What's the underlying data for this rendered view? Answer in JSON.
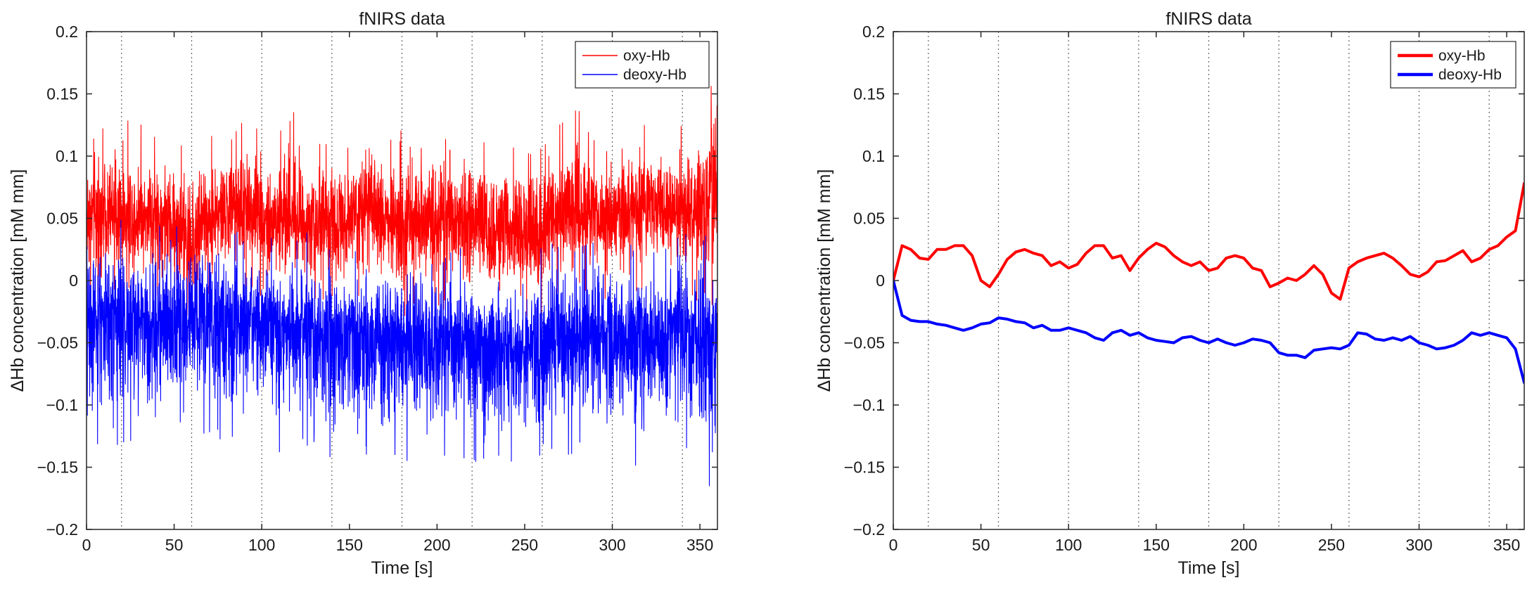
{
  "colors": {
    "oxy": "#ff0000",
    "deoxy": "#0000ff",
    "grid": "#666666",
    "axis": "#262626"
  },
  "chart_data": [
    {
      "type": "line",
      "title": "fNIRS data",
      "xlabel": "Time [s]",
      "ylabel": "ΔHb concentration [mM mm]",
      "xlim": [
        0,
        360
      ],
      "ylim": [
        -0.2,
        0.2
      ],
      "xticks": [
        "0",
        "50",
        "100",
        "150",
        "200",
        "250",
        "300",
        "350"
      ],
      "yticks": [
        "-0.2",
        "-0.15",
        "-0.1",
        "-0.05",
        "0",
        "0.05",
        "0.1",
        "0.15",
        "0.2"
      ],
      "event_lines_x": [
        20,
        60,
        100,
        140,
        180,
        220,
        260,
        300,
        340
      ],
      "grid": false,
      "legend": {
        "placement": "top-right",
        "entries": [
          "oxy-Hb",
          "deoxy-Hb"
        ]
      },
      "series": [
        {
          "name": "oxy-Hb",
          "color": "#ff0000",
          "x": [
            0,
            10,
            20,
            30,
            40,
            50,
            60,
            70,
            80,
            90,
            100,
            110,
            120,
            130,
            140,
            150,
            160,
            170,
            180,
            190,
            200,
            210,
            220,
            230,
            240,
            250,
            260,
            270,
            280,
            290,
            300,
            310,
            320,
            330,
            340,
            350,
            360
          ],
          "center": [
            0.05,
            0.052,
            0.05,
            0.05,
            0.05,
            0.045,
            0.03,
            0.05,
            0.055,
            0.055,
            0.05,
            0.048,
            0.05,
            0.048,
            0.045,
            0.055,
            0.055,
            0.05,
            0.045,
            0.05,
            0.05,
            0.045,
            0.04,
            0.04,
            0.045,
            0.04,
            0.035,
            0.055,
            0.058,
            0.055,
            0.055,
            0.06,
            0.06,
            0.055,
            0.055,
            0.06,
            0.065
          ],
          "upper": [
            0.12,
            0.13,
            0.12,
            0.12,
            0.11,
            0.1,
            0.1,
            0.11,
            0.11,
            0.12,
            0.11,
            0.11,
            0.13,
            0.1,
            0.11,
            0.13,
            0.12,
            0.1,
            0.12,
            0.12,
            0.11,
            0.1,
            0.12,
            0.1,
            0.1,
            0.1,
            0.1,
            0.12,
            0.13,
            0.11,
            0.1,
            0.11,
            0.12,
            0.11,
            0.12,
            0.13,
            0.17
          ],
          "lower": [
            -0.01,
            0,
            0,
            0,
            -0.01,
            -0.02,
            -0.02,
            -0.01,
            0,
            0,
            -0.01,
            -0.01,
            -0.01,
            -0.01,
            -0.02,
            -0.01,
            0,
            -0.01,
            -0.02,
            -0.01,
            -0.01,
            -0.02,
            -0.02,
            -0.02,
            -0.02,
            -0.02,
            -0.02,
            0,
            0,
            0,
            -0.01,
            -0.01,
            0,
            0,
            -0.01,
            -0.01,
            -0.01
          ]
        },
        {
          "name": "deoxy-Hb",
          "color": "#0000ff",
          "x": [
            0,
            10,
            20,
            30,
            40,
            50,
            60,
            70,
            80,
            90,
            100,
            110,
            120,
            130,
            140,
            150,
            160,
            170,
            180,
            190,
            200,
            210,
            220,
            230,
            240,
            250,
            260,
            270,
            280,
            290,
            300,
            310,
            320,
            330,
            340,
            350,
            360
          ],
          "center": [
            -0.03,
            -0.03,
            -0.03,
            -0.03,
            -0.035,
            -0.035,
            -0.03,
            -0.03,
            -0.035,
            -0.035,
            -0.035,
            -0.04,
            -0.04,
            -0.04,
            -0.045,
            -0.045,
            -0.045,
            -0.045,
            -0.05,
            -0.05,
            -0.05,
            -0.05,
            -0.05,
            -0.055,
            -0.055,
            -0.055,
            -0.05,
            -0.045,
            -0.045,
            -0.045,
            -0.045,
            -0.05,
            -0.05,
            -0.045,
            -0.045,
            -0.05,
            -0.06
          ],
          "upper": [
            0.05,
            0.05,
            0.04,
            0.04,
            0.04,
            0.03,
            0.06,
            0.04,
            0.03,
            0.03,
            0.03,
            0.02,
            0.03,
            0.03,
            0.02,
            0.02,
            0.02,
            0.02,
            0.02,
            0.02,
            0.01,
            0.02,
            0.02,
            0.01,
            0.01,
            0.0,
            0.02,
            0.02,
            0.02,
            0.03,
            0.02,
            0.02,
            0.02,
            0.02,
            0.03,
            0.03,
            0.03
          ],
          "lower": [
            -0.12,
            -0.13,
            -0.12,
            -0.12,
            -0.12,
            -0.11,
            -0.1,
            -0.12,
            -0.12,
            -0.12,
            -0.12,
            -0.13,
            -0.13,
            -0.12,
            -0.14,
            -0.14,
            -0.13,
            -0.13,
            -0.14,
            -0.13,
            -0.13,
            -0.14,
            -0.14,
            -0.14,
            -0.14,
            -0.14,
            -0.13,
            -0.13,
            -0.13,
            -0.13,
            -0.13,
            -0.14,
            -0.14,
            -0.13,
            -0.13,
            -0.14,
            -0.18
          ]
        }
      ]
    },
    {
      "type": "line",
      "title": "fNIRS data",
      "xlabel": "Time [s]",
      "ylabel": "ΔHb concentration [mM mm]",
      "xlim": [
        0,
        360
      ],
      "ylim": [
        -0.2,
        0.2
      ],
      "xticks": [
        "0",
        "50",
        "100",
        "150",
        "200",
        "250",
        "300",
        "350"
      ],
      "yticks": [
        "-0.2",
        "-0.15",
        "-0.1",
        "-0.05",
        "0",
        "0.05",
        "0.1",
        "0.15",
        "0.2"
      ],
      "event_lines_x": [
        20,
        60,
        100,
        140,
        180,
        220,
        260,
        300,
        340
      ],
      "grid": false,
      "legend": {
        "placement": "top-right",
        "entries": [
          "oxy-Hb",
          "deoxy-Hb"
        ]
      },
      "series": [
        {
          "name": "oxy-Hb",
          "color": "#ff0000",
          "x": [
            0,
            5,
            10,
            15,
            20,
            25,
            30,
            35,
            40,
            45,
            50,
            55,
            60,
            65,
            70,
            75,
            80,
            85,
            90,
            95,
            100,
            105,
            110,
            115,
            120,
            125,
            130,
            135,
            140,
            145,
            150,
            155,
            160,
            165,
            170,
            175,
            180,
            185,
            190,
            195,
            200,
            205,
            210,
            215,
            220,
            225,
            230,
            235,
            240,
            245,
            250,
            255,
            260,
            265,
            270,
            275,
            280,
            285,
            290,
            295,
            300,
            305,
            310,
            315,
            320,
            325,
            330,
            335,
            340,
            345,
            350,
            355,
            360
          ],
          "values": [
            0,
            0.028,
            0.025,
            0.018,
            0.017,
            0.025,
            0.025,
            0.028,
            0.028,
            0.02,
            0.0,
            -0.005,
            0.005,
            0.017,
            0.023,
            0.025,
            0.022,
            0.02,
            0.012,
            0.015,
            0.01,
            0.013,
            0.022,
            0.028,
            0.028,
            0.018,
            0.02,
            0.008,
            0.018,
            0.025,
            0.03,
            0.027,
            0.02,
            0.015,
            0.012,
            0.015,
            0.008,
            0.01,
            0.018,
            0.02,
            0.018,
            0.01,
            0.008,
            -0.005,
            -0.002,
            0.002,
            0.0,
            0.005,
            0.012,
            0.005,
            -0.01,
            -0.015,
            0.01,
            0.015,
            0.018,
            0.02,
            0.022,
            0.018,
            0.012,
            0.005,
            0.003,
            0.007,
            0.015,
            0.016,
            0.02,
            0.024,
            0.015,
            0.018,
            0.025,
            0.028,
            0.035,
            0.04,
            0.078
          ]
        },
        {
          "name": "deoxy-Hb",
          "color": "#0000ff",
          "x": [
            0,
            5,
            10,
            15,
            20,
            25,
            30,
            35,
            40,
            45,
            50,
            55,
            60,
            65,
            70,
            75,
            80,
            85,
            90,
            95,
            100,
            105,
            110,
            115,
            120,
            125,
            130,
            135,
            140,
            145,
            150,
            155,
            160,
            165,
            170,
            175,
            180,
            185,
            190,
            195,
            200,
            205,
            210,
            215,
            220,
            225,
            230,
            235,
            240,
            245,
            250,
            255,
            260,
            265,
            270,
            275,
            280,
            285,
            290,
            295,
            300,
            305,
            310,
            315,
            320,
            325,
            330,
            335,
            340,
            345,
            350,
            355,
            360
          ],
          "values": [
            0,
            -0.028,
            -0.032,
            -0.033,
            -0.033,
            -0.035,
            -0.036,
            -0.038,
            -0.04,
            -0.038,
            -0.035,
            -0.034,
            -0.03,
            -0.031,
            -0.033,
            -0.034,
            -0.038,
            -0.036,
            -0.04,
            -0.04,
            -0.038,
            -0.04,
            -0.042,
            -0.046,
            -0.048,
            -0.042,
            -0.04,
            -0.044,
            -0.042,
            -0.046,
            -0.048,
            -0.049,
            -0.05,
            -0.046,
            -0.045,
            -0.048,
            -0.05,
            -0.047,
            -0.05,
            -0.052,
            -0.05,
            -0.047,
            -0.048,
            -0.05,
            -0.058,
            -0.06,
            -0.06,
            -0.062,
            -0.056,
            -0.055,
            -0.054,
            -0.055,
            -0.052,
            -0.042,
            -0.043,
            -0.047,
            -0.048,
            -0.046,
            -0.048,
            -0.045,
            -0.05,
            -0.052,
            -0.055,
            -0.054,
            -0.052,
            -0.048,
            -0.042,
            -0.044,
            -0.042,
            -0.044,
            -0.046,
            -0.055,
            -0.082
          ]
        }
      ]
    }
  ]
}
